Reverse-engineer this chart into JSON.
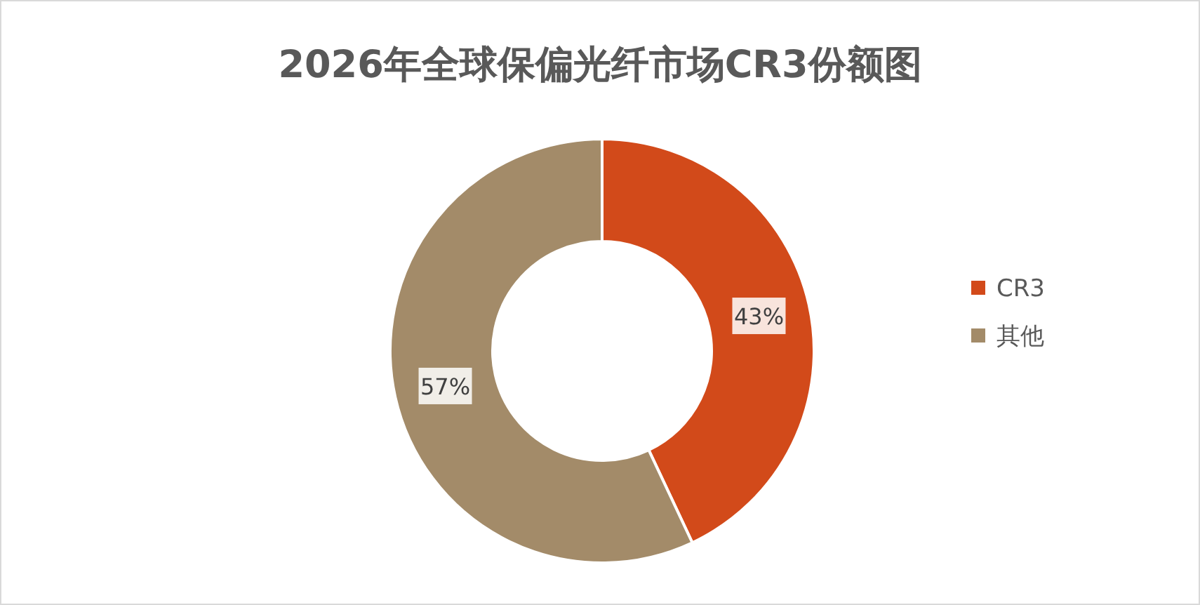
{
  "chart_data": {
    "type": "donut",
    "title": "2026年全球保偏光纤市场CR3份额图",
    "categories": [
      "CR3",
      "其他"
    ],
    "values": [
      43,
      57
    ],
    "colors": [
      "#d24a1a",
      "#a38b69"
    ],
    "value_labels": [
      "43%",
      "57%"
    ],
    "legend": "right"
  }
}
